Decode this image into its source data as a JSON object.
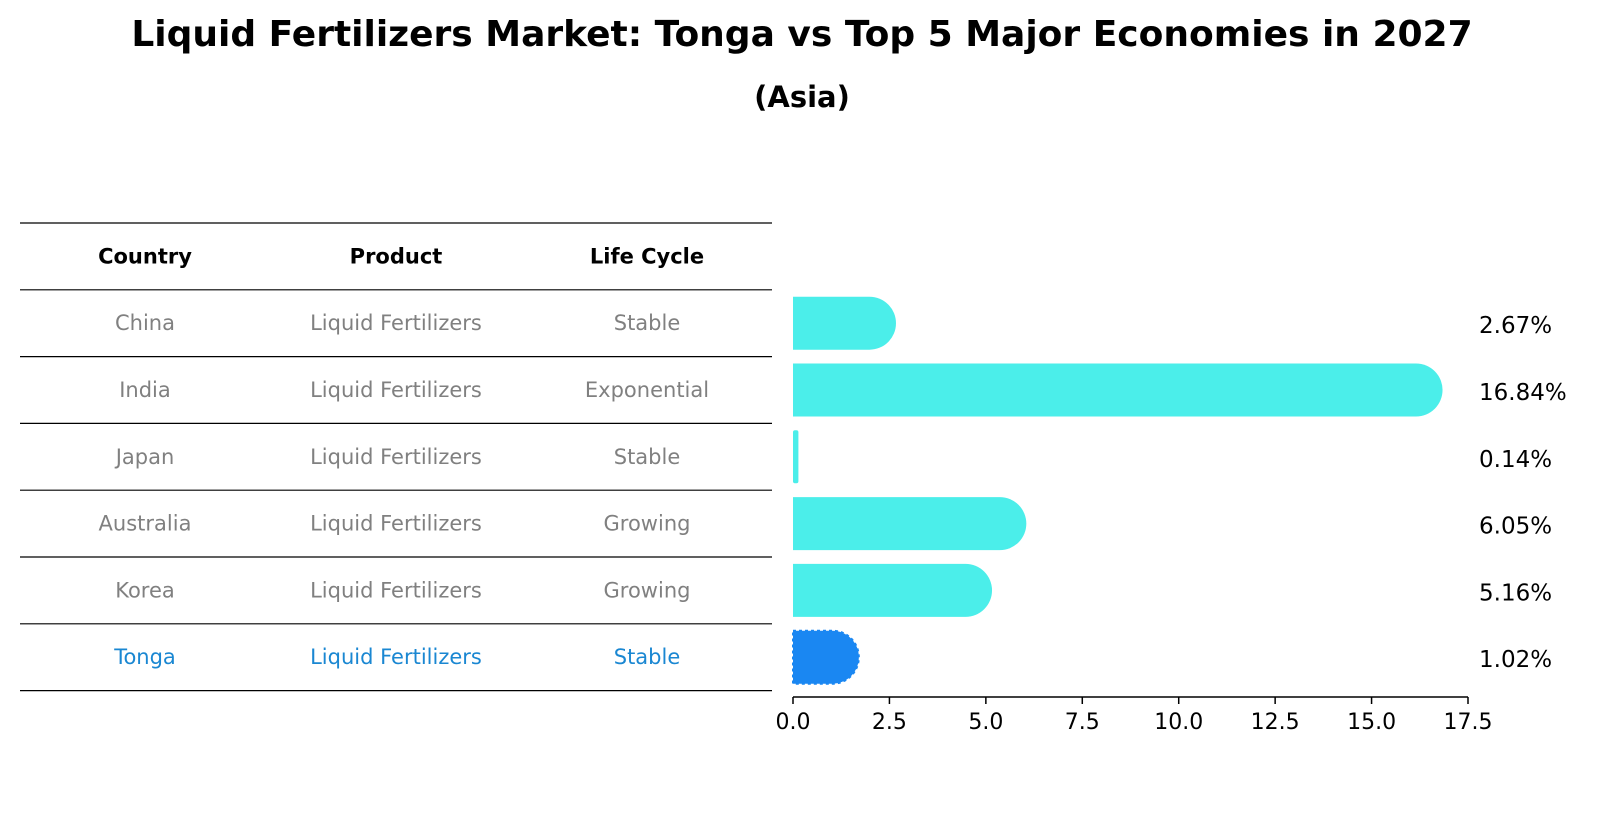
{
  "title": "Liquid Fertilizers Market: Tonga vs Top 5 Major Economies in 2027",
  "subtitle": "(Asia)",
  "table": {
    "headers": [
      "Country",
      "Product",
      "Life Cycle"
    ],
    "rows": [
      {
        "country": "China",
        "product": "Liquid Fertilizers",
        "life_cycle": "Stable",
        "highlight": false
      },
      {
        "country": "India",
        "product": "Liquid Fertilizers",
        "life_cycle": "Exponential",
        "highlight": false
      },
      {
        "country": "Japan",
        "product": "Liquid Fertilizers",
        "life_cycle": "Stable",
        "highlight": false
      },
      {
        "country": "Australia",
        "product": "Liquid Fertilizers",
        "life_cycle": "Growing",
        "highlight": false
      },
      {
        "country": "Korea",
        "product": "Liquid Fertilizers",
        "life_cycle": "Growing",
        "highlight": false
      },
      {
        "country": "Tonga",
        "product": "Liquid Fertilizers",
        "life_cycle": "Stable",
        "highlight": true
      }
    ]
  },
  "chart_data": {
    "type": "bar",
    "orientation": "horizontal",
    "categories": [
      "China",
      "India",
      "Japan",
      "Australia",
      "Korea",
      "Tonga"
    ],
    "values": [
      2.67,
      16.84,
      0.14,
      6.05,
      5.16,
      1.02
    ],
    "value_labels": [
      "2.67%",
      "16.84%",
      "0.14%",
      "6.05%",
      "5.16%",
      "1.02%"
    ],
    "xlim": [
      0,
      17.5
    ],
    "xticks": [
      0,
      2.5,
      5,
      7.5,
      10,
      12.5,
      15,
      17.5
    ],
    "xtick_labels": [
      "0.0",
      "2.5",
      "5.0",
      "7.5",
      "10.0",
      "12.5",
      "15.0",
      "17.5"
    ],
    "xlabel": "",
    "ylabel": "",
    "grid": false,
    "highlight_category": "Tonga"
  },
  "colors": {
    "bar": "#4beeea",
    "highlight_bar": "#1a87f2",
    "row_text": "#808080",
    "highlight_text": "#1a87d2",
    "header_text": "#000000",
    "rule": "#000000"
  }
}
